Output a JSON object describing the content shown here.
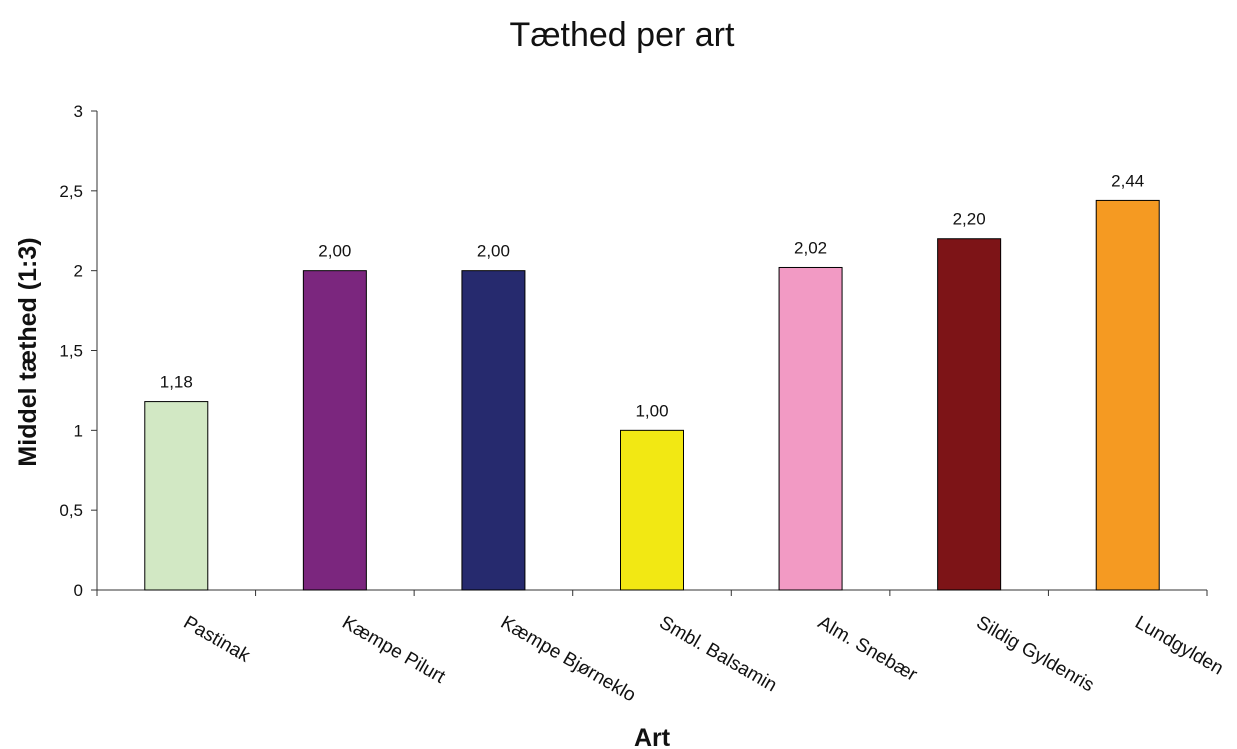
{
  "chart_data": {
    "type": "bar",
    "title": "Tæthed per art",
    "xlabel": "Art",
    "ylabel": "Middel tæthed (1:3)",
    "ylim": [
      0,
      3
    ],
    "yticks": [
      0,
      0.5,
      1,
      1.5,
      2,
      2.5,
      3
    ],
    "ytick_labels": [
      "0",
      "0,5",
      "1",
      "1,5",
      "2",
      "2,5",
      "3"
    ],
    "categories": [
      "Pastinak",
      "Kæmpe Pilurt",
      "Kæmpe Bjørneklo",
      "Smbl. Balsamin",
      "Alm. Snebær",
      "Sildig Gyldenris",
      "Lundgylden"
    ],
    "values": [
      1.18,
      2.0,
      2.0,
      1.0,
      2.02,
      2.2,
      2.44
    ],
    "data_labels": [
      "1,18",
      "2,00",
      "2,00",
      "1,00",
      "2,02",
      "2,20",
      "2,44"
    ],
    "colors": [
      "#d2e8c4",
      "#7b267e",
      "#262a6e",
      "#f2e813",
      "#f29ac4",
      "#7d1417",
      "#f59a22"
    ],
    "grid": false,
    "legend": "none"
  }
}
